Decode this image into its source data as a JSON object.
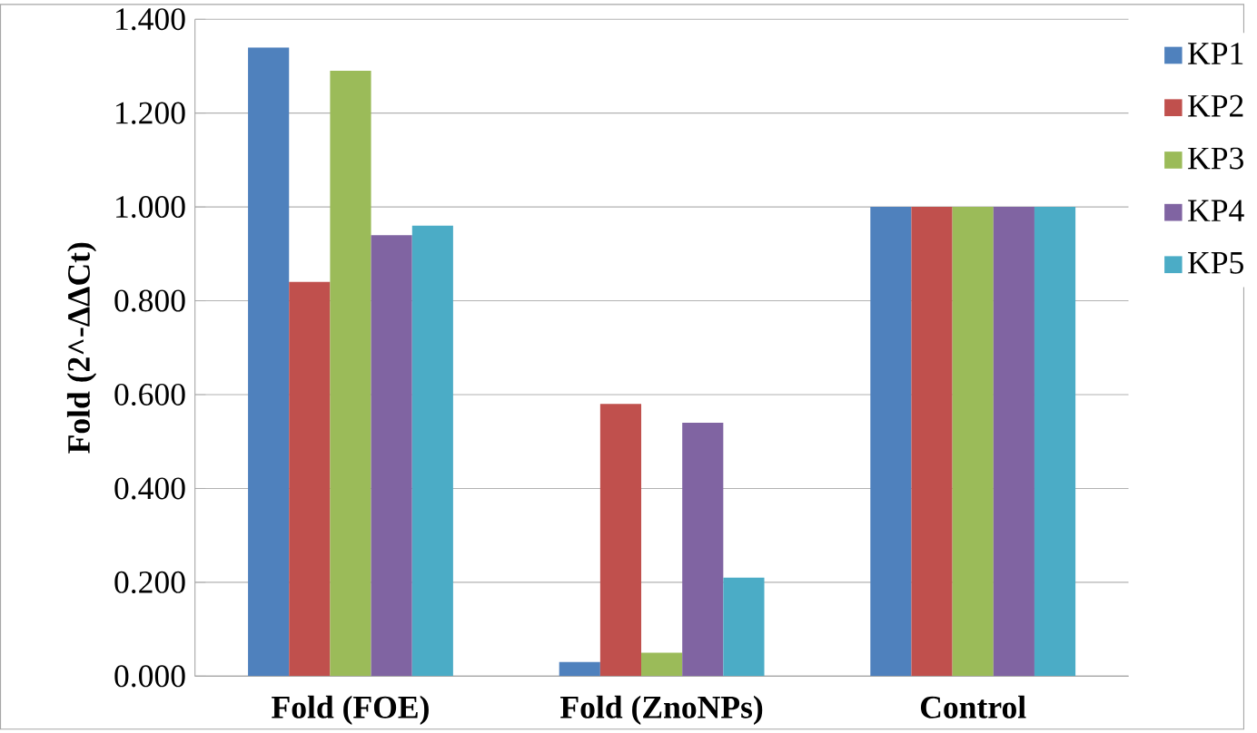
{
  "chart_data": {
    "type": "bar",
    "ylabel": "Fold (2^-ΔΔCt)",
    "categories": [
      "Fold (FOE)",
      "Fold (ZnoNPs)",
      "Control"
    ],
    "series": [
      {
        "name": "KP1",
        "color": "#4f81bd",
        "values": [
          1.34,
          0.03,
          1.0
        ]
      },
      {
        "name": "KP2",
        "color": "#c0504d",
        "values": [
          0.84,
          0.58,
          1.0
        ]
      },
      {
        "name": "KP3",
        "color": "#9bbb59",
        "values": [
          1.29,
          0.05,
          1.0
        ]
      },
      {
        "name": "KP4",
        "color": "#8064a2",
        "values": [
          0.94,
          0.54,
          1.0
        ]
      },
      {
        "name": "KP5",
        "color": "#4bacc6",
        "values": [
          0.96,
          0.21,
          1.0
        ]
      }
    ],
    "ylim": [
      0,
      1.4
    ],
    "yticks": [
      {
        "value": 0,
        "label": "0.000"
      },
      {
        "value": 0.2,
        "label": "0.200"
      },
      {
        "value": 0.4,
        "label": "0.400"
      },
      {
        "value": 0.6,
        "label": "0.600"
      },
      {
        "value": 0.8,
        "label": "0.800"
      },
      {
        "value": 1.0,
        "label": "1.000"
      },
      {
        "value": 1.2,
        "label": "1.200"
      },
      {
        "value": 1.4,
        "label": "1.400"
      }
    ],
    "grid": "y",
    "legend": "right"
  }
}
